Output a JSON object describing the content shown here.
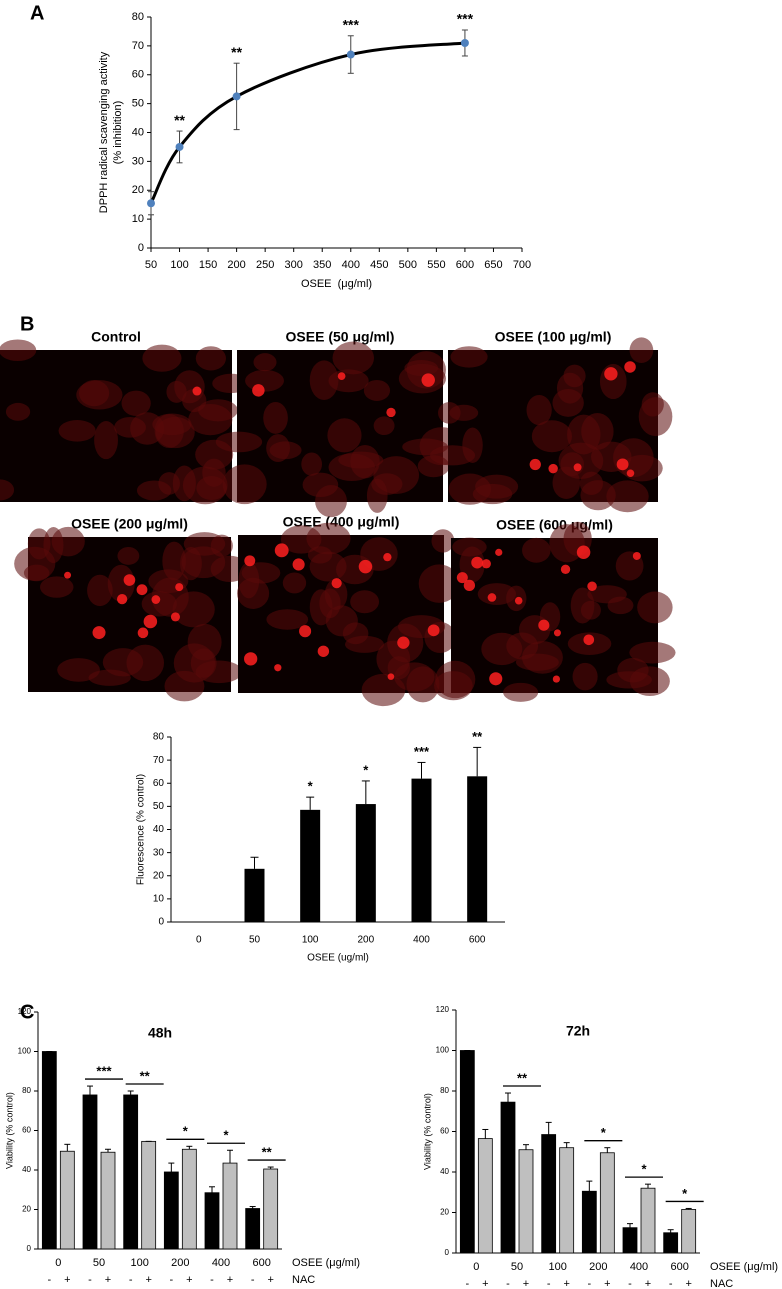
{
  "panels": [
    "A",
    "B",
    "C"
  ],
  "micrographs": [
    "Control",
    "OSEE (50 μg/ml)",
    "OSEE (100 μg/ml)",
    "OSEE (200 μg/ml)",
    "OSEE (400 μg/ml)",
    "OSEE (600 μg/ml)"
  ],
  "chart_data": [
    {
      "type": "line",
      "x": [
        50,
        100,
        200,
        400,
        600
      ],
      "series": [
        {
          "values": [
            15.5,
            35,
            52.5,
            67,
            71
          ],
          "errors": [
            4,
            5.5,
            11.5,
            6.5,
            4.5
          ],
          "color": "#000000",
          "marker_color": "#4f81bd"
        }
      ],
      "annotations": [
        null,
        "**",
        "**",
        "***",
        "***"
      ],
      "xlim": [
        50,
        700
      ],
      "xticks": [
        50,
        100,
        150,
        200,
        250,
        300,
        350,
        400,
        450,
        500,
        550,
        600,
        650,
        700
      ],
      "ylim": [
        0,
        80
      ],
      "yticks": [
        0,
        10,
        20,
        30,
        40,
        50,
        60,
        70,
        80
      ],
      "xlabel": "OSEE  (μg/ml)",
      "ylabel": "DPPH radical scavenging activity",
      "ylabel2": "(% inhibition)"
    },
    {
      "type": "bar",
      "categories": [
        "0",
        "50",
        "100",
        "200",
        "400",
        "600"
      ],
      "values": [
        null,
        23,
        48.5,
        51,
        62,
        63
      ],
      "errors": [
        null,
        5,
        5.5,
        10,
        7,
        12.5
      ],
      "color": "#000000",
      "annotations": [
        null,
        null,
        "*",
        "*",
        "***",
        "**"
      ],
      "ylim": [
        0,
        80
      ],
      "yticks": [
        0,
        10,
        20,
        30,
        40,
        50,
        60,
        70,
        80
      ],
      "xlabel": "OSEE (ug/ml)",
      "ylabel": "Fluorescence (% control)"
    },
    {
      "type": "grouped_bar",
      "title": "48h",
      "categories": [
        "0",
        "50",
        "100",
        "200",
        "400",
        "600"
      ],
      "series": [
        {
          "name": "-",
          "color": "#000000",
          "values": [
            100,
            78,
            78,
            39,
            28.5,
            20.5
          ],
          "errors": [
            0,
            4.5,
            2,
            4.5,
            3,
            1
          ]
        },
        {
          "name": "+",
          "color": "#bfbfbf",
          "values": [
            49.5,
            49,
            54.5,
            50.5,
            43.5,
            40.5
          ],
          "errors": [
            3.5,
            1.5,
            0,
            1.5,
            6.5,
            1
          ]
        }
      ],
      "annotations": [
        null,
        "***",
        "**",
        "*",
        "*",
        "**"
      ],
      "ylim": [
        0,
        120
      ],
      "yticks": [
        0,
        20,
        40,
        60,
        80,
        100,
        120
      ],
      "xlabel": "OSEE (μg/ml)",
      "group_label": "NAC",
      "ylabel": "Viability (% control)"
    },
    {
      "type": "grouped_bar",
      "title": "72h",
      "categories": [
        "0",
        "50",
        "100",
        "200",
        "400",
        "600"
      ],
      "series": [
        {
          "name": "-",
          "color": "#000000",
          "values": [
            100,
            74.5,
            58.5,
            30.5,
            12.5,
            10
          ],
          "errors": [
            0,
            4.5,
            6,
            5,
            2,
            1.5
          ]
        },
        {
          "name": "+",
          "color": "#bfbfbf",
          "values": [
            56.5,
            51,
            52,
            49.5,
            32,
            21.5
          ],
          "errors": [
            4.5,
            2.5,
            2.5,
            2.5,
            2,
            0.5
          ]
        }
      ],
      "annotations": [
        null,
        "**",
        null,
        "*",
        "*",
        "*"
      ],
      "ylim": [
        0,
        120
      ],
      "yticks": [
        0,
        20,
        40,
        60,
        80,
        100,
        120
      ],
      "xlabel": "OSEE (μg/ml)",
      "group_label": "NAC",
      "ylabel": "Viability (% control)"
    }
  ]
}
